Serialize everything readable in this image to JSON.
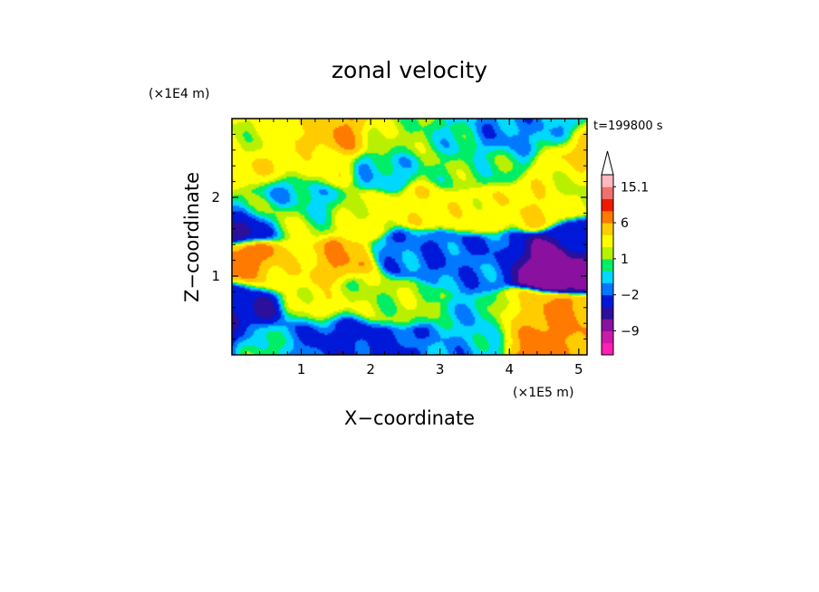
{
  "chart_data": {
    "type": "heatmap",
    "title": "zonal velocity",
    "xlabel": "X−coordinate",
    "ylabel": "Z−coordinate",
    "x_unit_label": "(×1E5 m)",
    "y_unit_label": "(×1E4 m)",
    "time_label": "t=199800 s",
    "xlim": [
      0,
      5.12
    ],
    "ylim": [
      0,
      3.0
    ],
    "x_ticks": [
      1,
      2,
      3,
      4,
      5
    ],
    "x_tick_labels": [
      "1",
      "2",
      "3",
      "4",
      "5"
    ],
    "y_ticks": [
      1,
      2
    ],
    "y_tick_labels": [
      "1",
      "2"
    ],
    "colorbar": {
      "levels": [
        -15.1,
        -12,
        -9,
        -6,
        -4,
        -2,
        -1,
        0,
        1,
        2,
        4,
        6,
        9,
        12,
        15.1
      ],
      "colors": [
        "#ff1fb4",
        "#cc1aa8",
        "#8a10a0",
        "#2c0f9a",
        "#0018d8",
        "#0078ff",
        "#00d8ff",
        "#00ee66",
        "#b8f000",
        "#ffff00",
        "#ffcc00",
        "#ff7a00",
        "#ee1a00",
        "#f07070",
        "#ffb8c0"
      ],
      "labels": [
        {
          "value": 15.1,
          "text": "15.1"
        },
        {
          "value": 6,
          "text": "6"
        },
        {
          "value": 1,
          "text": "1"
        },
        {
          "value": -2,
          "text": "−2"
        },
        {
          "value": -9,
          "text": "−9"
        }
      ],
      "extend": "max"
    },
    "field_features": [
      {
        "x": 0.1,
        "z": 1.15,
        "value": 7
      },
      {
        "x": 0.35,
        "z": 1.2,
        "value": 8
      },
      {
        "x": 0.55,
        "z": 1.05,
        "value": 4
      },
      {
        "x": 0.9,
        "z": 1.15,
        "value": 3
      },
      {
        "x": 1.45,
        "z": 1.15,
        "value": 6
      },
      {
        "x": 1.8,
        "z": 0.8,
        "value": 1.5
      },
      {
        "x": 2.5,
        "z": 0.65,
        "value": 1.5
      },
      {
        "x": 1.05,
        "z": 0.6,
        "value": 1.0
      },
      {
        "x": 0.15,
        "z": 0.7,
        "value": -3
      },
      {
        "x": 0.35,
        "z": 0.55,
        "value": -5
      },
      {
        "x": 0.3,
        "z": 0.25,
        "value": 2
      },
      {
        "x": 0.9,
        "z": 0.3,
        "value": -1.5
      },
      {
        "x": 2.6,
        "z": 1.3,
        "value": -1.5
      },
      {
        "x": 3.0,
        "z": 1.25,
        "value": -2
      },
      {
        "x": 3.4,
        "z": 1.1,
        "value": -1.5
      },
      {
        "x": 3.8,
        "z": 1.25,
        "value": -2
      },
      {
        "x": 4.55,
        "z": 1.15,
        "value": -8
      },
      {
        "x": 4.9,
        "z": 1.15,
        "value": -7
      },
      {
        "x": 4.2,
        "z": 0.5,
        "value": 3
      },
      {
        "x": 4.45,
        "z": 0.45,
        "value": 8
      },
      {
        "x": 4.9,
        "z": 0.4,
        "value": 6
      },
      {
        "x": 3.5,
        "z": 0.45,
        "value": -0.5
      },
      {
        "x": 3.0,
        "z": 0.1,
        "value": -1
      },
      {
        "x": 2.4,
        "z": 0.1,
        "value": -2.5
      },
      {
        "x": 1.9,
        "z": 1.8,
        "value": 2.5
      },
      {
        "x": 2.8,
        "z": 1.9,
        "value": 3.5
      },
      {
        "x": 3.6,
        "z": 1.85,
        "value": 3.0
      },
      {
        "x": 4.4,
        "z": 1.95,
        "value": 4
      },
      {
        "x": 4.9,
        "z": 2.1,
        "value": 1.5
      },
      {
        "x": 1.2,
        "z": 1.9,
        "value": -0.5
      },
      {
        "x": 0.9,
        "z": 1.7,
        "value": 2
      },
      {
        "x": 0.3,
        "z": 1.8,
        "value": 1.5
      },
      {
        "x": 0.2,
        "z": 1.65,
        "value": -6
      },
      {
        "x": 0.75,
        "z": 2.1,
        "value": -1
      },
      {
        "x": 0.5,
        "z": 2.35,
        "value": 4
      },
      {
        "x": 1.3,
        "z": 2.4,
        "value": 3
      },
      {
        "x": 2.2,
        "z": 2.35,
        "value": -0.5
      },
      {
        "x": 3.2,
        "z": 2.35,
        "value": 1.0
      },
      {
        "x": 3.8,
        "z": 2.45,
        "value": 0.5
      },
      {
        "x": 4.8,
        "z": 2.3,
        "value": 3
      },
      {
        "x": 0.4,
        "z": 2.7,
        "value": 2
      },
      {
        "x": 1.0,
        "z": 2.85,
        "value": 4
      },
      {
        "x": 1.55,
        "z": 2.8,
        "value": 6
      },
      {
        "x": 2.3,
        "z": 2.75,
        "value": 1.5
      },
      {
        "x": 3.3,
        "z": 2.75,
        "value": 0
      },
      {
        "x": 3.8,
        "z": 2.75,
        "value": -1.5
      },
      {
        "x": 4.6,
        "z": 2.8,
        "value": -1
      },
      {
        "x": 5.0,
        "z": 2.6,
        "value": 5
      },
      {
        "x": 1.25,
        "z": 0.6,
        "value": 5
      },
      {
        "x": 1.35,
        "z": 0.35,
        "value": -3
      },
      {
        "x": 0.05,
        "z": 0.3,
        "value": -6
      },
      {
        "x": 5.05,
        "z": 1.4,
        "value": -3
      }
    ]
  }
}
